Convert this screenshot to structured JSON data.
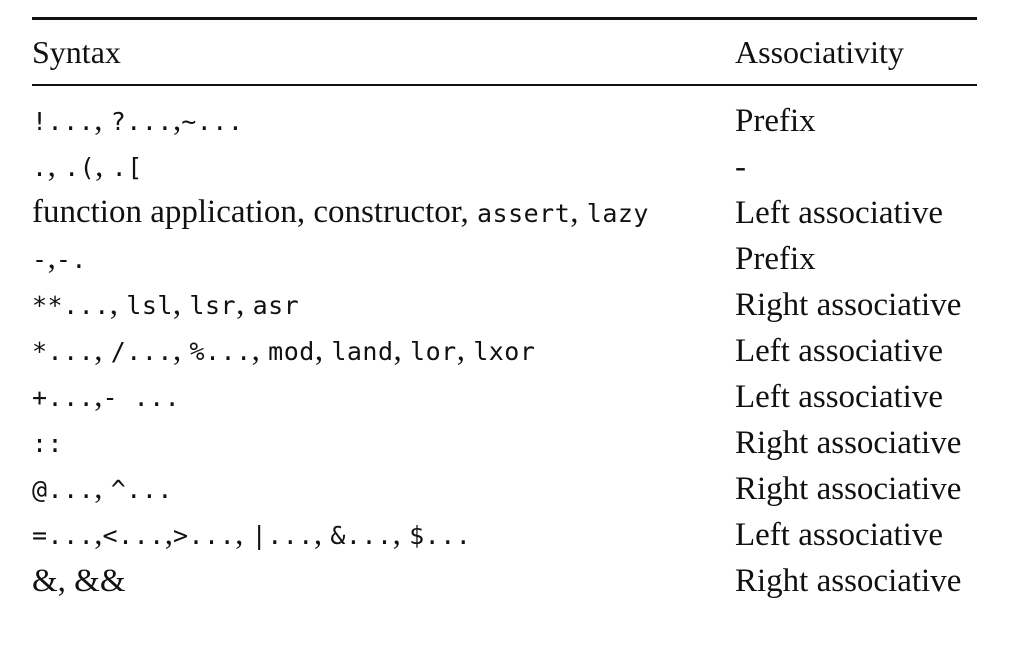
{
  "table": {
    "headers": {
      "syntax": "Syntax",
      "associativity": "Associativity"
    },
    "rows": [
      {
        "syntax_parts": [
          {
            "text": "!...",
            "style": "mono"
          },
          {
            "text": ", ",
            "style": "serif"
          },
          {
            "text": "?...",
            "style": "mono"
          },
          {
            "text": ",",
            "style": "serif"
          },
          {
            "text": "~...",
            "style": "mono"
          }
        ],
        "associativity": "Prefix"
      },
      {
        "syntax_parts": [
          {
            "text": ".",
            "style": "mono"
          },
          {
            "text": ", ",
            "style": "serif"
          },
          {
            "text": ".(",
            "style": "mono"
          },
          {
            "text": ", ",
            "style": "serif"
          },
          {
            "text": ".[",
            "style": "mono"
          }
        ],
        "associativity": "-"
      },
      {
        "syntax_parts": [
          {
            "text": "function application, constructor, ",
            "style": "serif"
          },
          {
            "text": "assert",
            "style": "mono"
          },
          {
            "text": ", ",
            "style": "serif"
          },
          {
            "text": "lazy",
            "style": "mono"
          }
        ],
        "associativity": "Left associative"
      },
      {
        "syntax_parts": [
          {
            "text": "-",
            "style": "mono"
          },
          {
            "text": ",",
            "style": "serif"
          },
          {
            "text": "-.",
            "style": "mono"
          }
        ],
        "associativity": "Prefix"
      },
      {
        "syntax_parts": [
          {
            "text": "**...",
            "style": "mono"
          },
          {
            "text": ", ",
            "style": "serif"
          },
          {
            "text": "lsl",
            "style": "mono"
          },
          {
            "text": ", ",
            "style": "serif"
          },
          {
            "text": "lsr",
            "style": "mono"
          },
          {
            "text": ", ",
            "style": "serif"
          },
          {
            "text": "asr",
            "style": "mono"
          }
        ],
        "associativity": "Right associative"
      },
      {
        "syntax_parts": [
          {
            "text": "*...",
            "style": "mono"
          },
          {
            "text": ", ",
            "style": "serif"
          },
          {
            "text": "/...",
            "style": "mono"
          },
          {
            "text": ", ",
            "style": "serif"
          },
          {
            "text": "%...",
            "style": "mono"
          },
          {
            "text": ", ",
            "style": "serif"
          },
          {
            "text": "mod",
            "style": "mono"
          },
          {
            "text": ", ",
            "style": "serif"
          },
          {
            "text": "land",
            "style": "mono"
          },
          {
            "text": ", ",
            "style": "serif"
          },
          {
            "text": "lor",
            "style": "mono"
          },
          {
            "text": ", ",
            "style": "serif"
          },
          {
            "text": "lxor",
            "style": "mono"
          }
        ],
        "associativity": "Left associative"
      },
      {
        "syntax_parts": [
          {
            "text": "+...",
            "style": "mono"
          },
          {
            "text": ",",
            "style": "serif"
          },
          {
            "text": "- ...",
            "style": "mono"
          }
        ],
        "associativity": "Left associative"
      },
      {
        "syntax_parts": [
          {
            "text": "::",
            "style": "mono"
          }
        ],
        "associativity": "Right associative"
      },
      {
        "syntax_parts": [
          {
            "text": "@...",
            "style": "mono"
          },
          {
            "text": ", ",
            "style": "serif"
          },
          {
            "text": "^...",
            "style": "mono"
          }
        ],
        "associativity": "Right associative"
      },
      {
        "syntax_parts": [
          {
            "text": "=...",
            "style": "mono"
          },
          {
            "text": ",",
            "style": "serif"
          },
          {
            "text": "<...",
            "style": "mono"
          },
          {
            "text": ",",
            "style": "serif"
          },
          {
            "text": ">...",
            "style": "mono"
          },
          {
            "text": ", ",
            "style": "serif"
          },
          {
            "text": "|...",
            "style": "mono"
          },
          {
            "text": ", ",
            "style": "serif"
          },
          {
            "text": "&...",
            "style": "mono"
          },
          {
            "text": ", ",
            "style": "serif"
          },
          {
            "text": "$...",
            "style": "mono"
          }
        ],
        "associativity": "Left associative"
      },
      {
        "syntax_parts": [
          {
            "text": "&, &&",
            "style": "serif"
          }
        ],
        "associativity": "Right associative"
      }
    ]
  }
}
